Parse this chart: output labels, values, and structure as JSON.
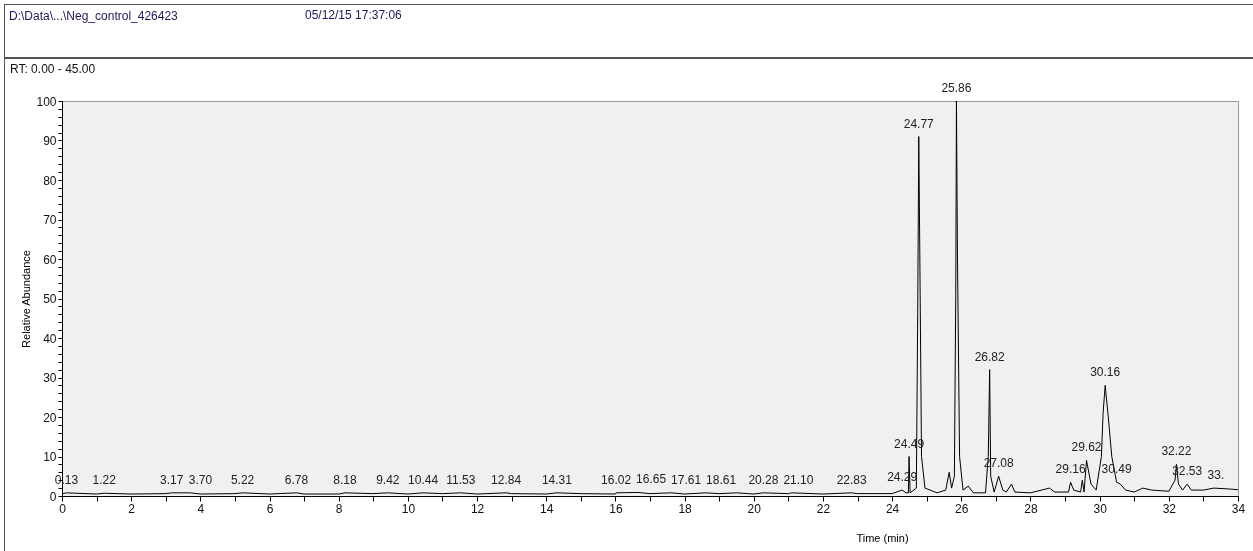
{
  "chart_data": {
    "type": "line",
    "title": "D:\\Data\\...\\Neg_control_426423",
    "xlabel": "Time (min)",
    "ylabel": "Relative Abundance",
    "annotations": [
      "05/12/15 17:37:06",
      "RT: 0.00 - 45.00",
      {
        "text": "0.13",
        "x": 0.13,
        "y": 0.8
      },
      {
        "text": "1.22",
        "x": 1.22,
        "y": 0.7
      },
      {
        "text": "3.17",
        "x": 3.17,
        "y": 0.8
      },
      {
        "text": "3.70",
        "x": 3.7,
        "y": 0.8
      },
      {
        "text": "5.22",
        "x": 5.22,
        "y": 0.8
      },
      {
        "text": "6.78",
        "x": 6.78,
        "y": 0.8
      },
      {
        "text": "8.18",
        "x": 8.18,
        "y": 0.8
      },
      {
        "text": "9.42",
        "x": 9.42,
        "y": 0.8
      },
      {
        "text": "10.44",
        "x": 10.44,
        "y": 0.8
      },
      {
        "text": "11.53",
        "x": 11.53,
        "y": 0.8
      },
      {
        "text": "12.84",
        "x": 12.84,
        "y": 0.8
      },
      {
        "text": "14.31",
        "x": 14.31,
        "y": 0.8
      },
      {
        "text": "16.02",
        "x": 16.02,
        "y": 0.8
      },
      {
        "text": "16.65",
        "x": 16.65,
        "y": 0.9
      },
      {
        "text": "17.61",
        "x": 17.61,
        "y": 0.8
      },
      {
        "text": "18.61",
        "x": 18.61,
        "y": 0.8
      },
      {
        "text": "20.28",
        "x": 20.28,
        "y": 0.8
      },
      {
        "text": "21.10",
        "x": 21.1,
        "y": 0.8
      },
      {
        "text": "22.83",
        "x": 22.83,
        "y": 0.8
      },
      {
        "text": "24.29",
        "x": 24.29,
        "y": 1.5
      },
      {
        "text": "24.49",
        "x": 24.49,
        "y": 10
      },
      {
        "text": "24.77",
        "x": 24.77,
        "y": 91
      },
      {
        "text": "25.86",
        "x": 25.86,
        "y": 100
      },
      {
        "text": "26.82",
        "x": 26.82,
        "y": 32
      },
      {
        "text": "27.08",
        "x": 27.08,
        "y": 5
      },
      {
        "text": "29.16",
        "x": 29.16,
        "y": 3.5
      },
      {
        "text": "29.62",
        "x": 29.62,
        "y": 9
      },
      {
        "text": "30.16",
        "x": 30.16,
        "y": 28
      },
      {
        "text": "30.49",
        "x": 30.49,
        "y": 3.5
      },
      {
        "text": "32.22",
        "x": 32.22,
        "y": 8
      },
      {
        "text": "32.53",
        "x": 32.53,
        "y": 3
      },
      {
        "text": "33.",
        "x": 33.3,
        "y": 2
      }
    ],
    "xlim": [
      0,
      34
    ],
    "xticks": [
      0,
      {
        "value": 1,
        "label": null
      },
      2,
      {
        "value": 3,
        "label": null
      },
      4,
      {
        "value": 5,
        "label": null
      },
      6,
      {
        "value": 7,
        "label": null
      },
      8,
      {
        "value": 9,
        "label": null
      },
      10,
      {
        "value": 11,
        "label": null
      },
      12,
      {
        "value": 13,
        "label": null
      },
      14,
      {
        "value": 15,
        "label": null
      },
      16,
      {
        "value": 17,
        "label": null
      },
      18,
      {
        "value": 19,
        "label": null
      },
      20,
      {
        "value": 21,
        "label": null
      },
      22,
      {
        "value": 23,
        "label": null
      },
      24,
      {
        "value": 25,
        "label": null
      },
      26,
      {
        "value": 27,
        "label": null
      },
      28,
      {
        "value": 29,
        "label": null
      },
      30,
      {
        "value": 31,
        "label": null
      },
      32,
      {
        "value": 33,
        "label": null
      },
      34
    ],
    "ylim": [
      0,
      100
    ],
    "yticks": [
      0,
      {
        "value": 2,
        "label": null
      },
      {
        "value": 4,
        "label": null
      },
      {
        "value": 6,
        "label": null
      },
      {
        "value": 8,
        "label": null
      },
      10,
      {
        "value": 12,
        "label": null
      },
      {
        "value": 14,
        "label": null
      },
      {
        "value": 16,
        "label": null
      },
      {
        "value": 18,
        "label": null
      },
      20,
      {
        "value": 22,
        "label": null
      },
      {
        "value": 24,
        "label": null
      },
      {
        "value": 26,
        "label": null
      },
      {
        "value": 28,
        "label": null
      },
      30,
      {
        "value": 32,
        "label": null
      },
      {
        "value": 34,
        "label": null
      },
      {
        "value": 36,
        "label": null
      },
      {
        "value": 38,
        "label": null
      },
      40,
      {
        "value": 42,
        "label": null
      },
      {
        "value": 44,
        "label": null
      },
      {
        "value": 46,
        "label": null
      },
      {
        "value": 48,
        "label": null
      },
      50,
      {
        "value": 52,
        "label": null
      },
      {
        "value": 54,
        "label": null
      },
      {
        "value": 56,
        "label": null
      },
      {
        "value": 58,
        "label": null
      },
      60,
      {
        "value": 62,
        "label": null
      },
      {
        "value": 64,
        "label": null
      },
      {
        "value": 66,
        "label": null
      },
      {
        "value": 68,
        "label": null
      },
      70,
      {
        "value": 72,
        "label": null
      },
      {
        "value": 74,
        "label": null
      },
      {
        "value": 76,
        "label": null
      },
      {
        "value": 78,
        "label": null
      },
      80,
      {
        "value": 82,
        "label": null
      },
      {
        "value": 84,
        "label": null
      },
      {
        "value": 86,
        "label": null
      },
      {
        "value": 88,
        "label": null
      },
      90,
      {
        "value": 92,
        "label": null
      },
      {
        "value": 94,
        "label": null
      },
      {
        "value": 96,
        "label": null
      },
      {
        "value": 98,
        "label": null
      },
      100
    ],
    "grid": false,
    "legend": false,
    "series": [
      {
        "color": "#000000",
        "x": [
          0,
          0.13,
          1,
          1.22,
          2,
          3,
          3.17,
          3.7,
          4,
          5,
          5.22,
          6,
          6.78,
          7,
          8,
          8.18,
          9,
          9.42,
          10,
          10.44,
          11,
          11.53,
          12,
          12.84,
          13,
          14,
          14.31,
          15,
          16,
          16.02,
          16.65,
          17,
          17.61,
          18,
          18.61,
          19,
          19.5,
          20,
          20.28,
          21,
          21.1,
          22,
          22.83,
          23,
          24,
          24.29,
          24.4,
          24.47,
          24.49,
          24.52,
          24.7,
          24.74,
          24.77,
          24.8,
          24.85,
          24.95,
          25.3,
          25.55,
          25.65,
          25.72,
          25.8,
          25.84,
          25.86,
          25.89,
          25.95,
          26.05,
          26.2,
          26.35,
          26.7,
          26.78,
          26.82,
          26.85,
          26.95,
          27.08,
          27.2,
          27.3,
          27.45,
          27.55,
          28,
          28.55,
          28.7,
          29.1,
          29.16,
          29.25,
          29.45,
          29.5,
          29.55,
          29.62,
          29.75,
          29.9,
          30.05,
          30.1,
          30.16,
          30.25,
          30.35,
          30.49,
          30.6,
          30.75,
          31,
          31.25,
          31.5,
          32,
          32.18,
          32.22,
          32.28,
          32.4,
          32.53,
          32.65,
          33,
          33.3,
          33.7,
          34
        ],
        "values": [
          0.5,
          0.8,
          0.5,
          0.7,
          0.5,
          0.6,
          0.8,
          0.8,
          0.5,
          0.6,
          0.8,
          0.5,
          0.8,
          0.5,
          0.5,
          0.8,
          0.6,
          0.8,
          0.5,
          0.8,
          0.6,
          0.8,
          0.5,
          0.8,
          0.6,
          0.5,
          0.8,
          0.6,
          0.5,
          0.8,
          0.9,
          0.6,
          0.8,
          0.5,
          0.8,
          0.6,
          0.8,
          0.5,
          0.8,
          0.6,
          0.8,
          0.5,
          0.8,
          0.6,
          0.6,
          1.5,
          0.8,
          0.8,
          10,
          0.8,
          2,
          46,
          91,
          62,
          10,
          2,
          0.8,
          1.5,
          6,
          2,
          5,
          51,
          100,
          60,
          10,
          1.5,
          2.5,
          0.8,
          0.8,
          10,
          32,
          5,
          1,
          5,
          1.5,
          1,
          3,
          1,
          0.8,
          2,
          1,
          1,
          3.5,
          1.5,
          1,
          4,
          1,
          9,
          3,
          1.5,
          10,
          21,
          28,
          20,
          10,
          3.5,
          3,
          1.5,
          1,
          2,
          1.5,
          1.2,
          4,
          8,
          3,
          1.5,
          3,
          1.5,
          1.5,
          2,
          1.8,
          1.6
        ]
      }
    ]
  }
}
